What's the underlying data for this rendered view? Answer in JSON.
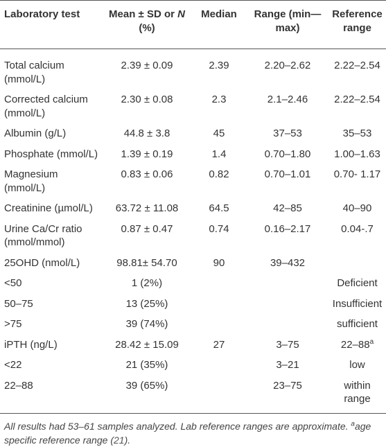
{
  "table": {
    "header": [
      "Laboratory test",
      {
        "before": "Mean ± SD or ",
        "italic": "N",
        "after": " (%)"
      },
      "Median",
      "Range (min—max)",
      "Reference range"
    ],
    "rows": [
      [
        "Total calcium (mmol/L)",
        "2.39 ± 0.09",
        "2.39",
        "2.20–2.62",
        "2.22–2.54"
      ],
      [
        "Corrected calcium (mmol/L)",
        "2.30 ± 0.08",
        "2.3",
        "2.1–2.46",
        "2.22–2.54"
      ],
      [
        "Albumin (g/L)",
        "44.8 ± 3.8",
        "45",
        "37–53",
        "35–53"
      ],
      [
        "Phosphate (mmol/L)",
        "1.39 ± 0.19",
        "1.4",
        "0.70–1.80",
        "1.00–1.63"
      ],
      [
        "Magnesium (mmol/L)",
        "0.83 ± 0.06",
        "0.82",
        "0.70–1.01",
        "0.70- 1.17"
      ],
      [
        "Creatinine (µmol/L)",
        "63.72 ± 11.08",
        "64.5",
        "42–85",
        "40–90"
      ],
      [
        "Urine Ca/Cr ratio (mmol/mmol)",
        "0.87 ± 0.47",
        "0.74",
        "0.16–2.17",
        "0.04-.7"
      ],
      [
        "25OHD (nmol/L)",
        "98.81± 54.70",
        "90",
        "39–432",
        null
      ],
      [
        "<50",
        "1 (2%)",
        null,
        null,
        "Deficient"
      ],
      [
        "50–75",
        "13 (25%)",
        null,
        null,
        "Insufficient"
      ],
      [
        ">75",
        "39 (74%)",
        null,
        null,
        "sufficient"
      ],
      [
        "iPTH (ng/L)",
        "28.42 ± 15.09",
        "27",
        "3–75",
        {
          "text": "22–88",
          "sup": "a"
        }
      ],
      [
        "<22",
        "21 (35%)",
        null,
        "3–21",
        "low"
      ],
      [
        "22–88",
        "39 (65%)",
        null,
        "23–75",
        "within range"
      ]
    ]
  },
  "footnote": {
    "text": "All results had 53–61 samples analyzed. Lab reference ranges are approximate. ",
    "sup": "a",
    "after": "age specific reference range ",
    "open": "(",
    "ref": "21",
    "end": ")."
  }
}
